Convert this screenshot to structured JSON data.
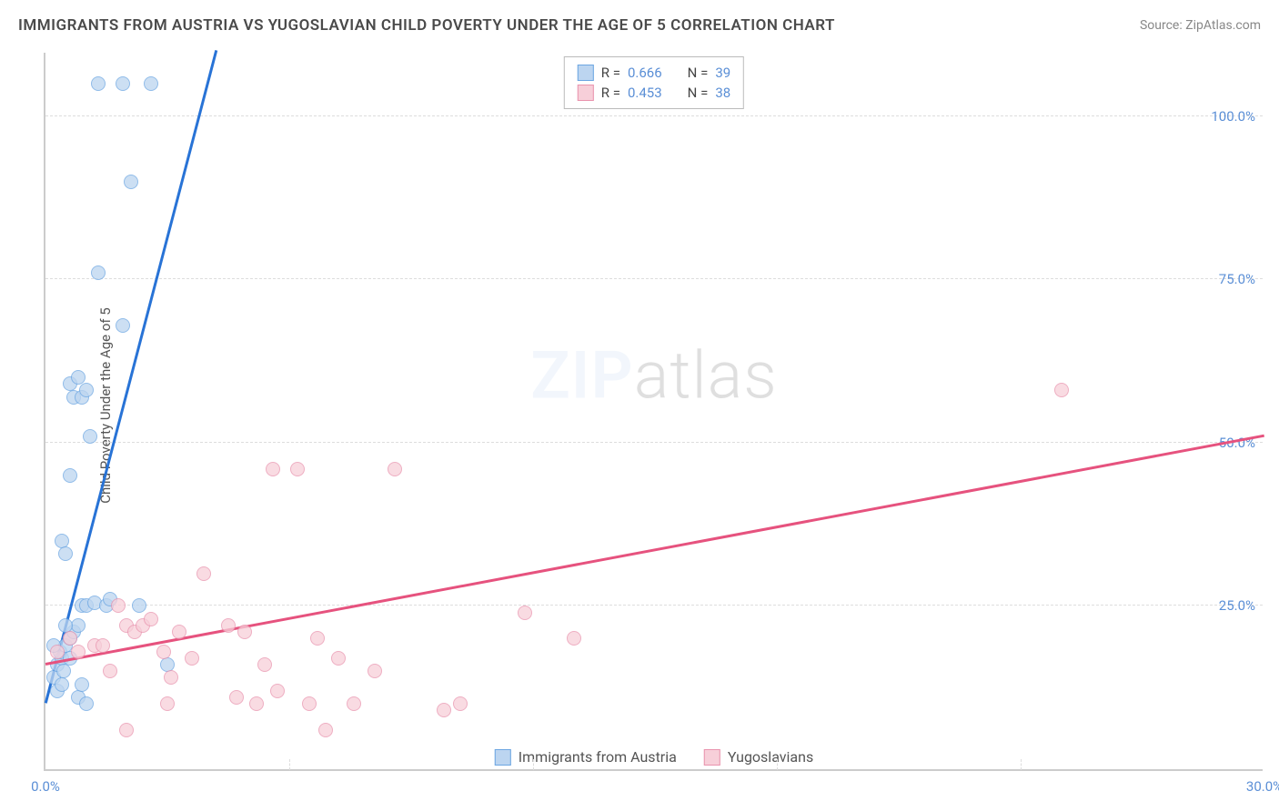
{
  "title": "IMMIGRANTS FROM AUSTRIA VS YUGOSLAVIAN CHILD POVERTY UNDER THE AGE OF 5 CORRELATION CHART",
  "source_label": "Source: ZipAtlas.com",
  "y_axis_label": "Child Poverty Under the Age of 5",
  "watermark_bold": "ZIP",
  "watermark_rest": "atlas",
  "chart": {
    "type": "scatter",
    "background_color": "#ffffff",
    "grid_color": "#dddddd",
    "axis_color": "#cccccc",
    "tick_label_color": "#5b8fd6",
    "x_range": [
      0,
      30
    ],
    "y_range": [
      0,
      110
    ],
    "y_ticks": [
      {
        "value": 25,
        "label": "25.0%"
      },
      {
        "value": 50,
        "label": "50.0%"
      },
      {
        "value": 75,
        "label": "75.0%"
      },
      {
        "value": 100,
        "label": "100.0%"
      }
    ],
    "x_ticks": [
      {
        "value": 0,
        "label": "0.0%"
      },
      {
        "value": 30,
        "label": "30.0%"
      }
    ],
    "x_minor_ticks": [
      6,
      12,
      18,
      24
    ],
    "series": [
      {
        "id": "austria",
        "name": "Immigrants from Austria",
        "marker_fill": "#bcd5f0",
        "marker_stroke": "#6ca6e2",
        "line_color": "#2873d6",
        "r_value": "0.666",
        "n_value": "39",
        "trend_start": {
          "x": 0,
          "y": 10
        },
        "trend_end": {
          "x": 4.2,
          "y": 110
        },
        "points": [
          {
            "x": 0.2,
            "y": 14
          },
          {
            "x": 0.3,
            "y": 16
          },
          {
            "x": 0.4,
            "y": 17
          },
          {
            "x": 0.35,
            "y": 18
          },
          {
            "x": 0.5,
            "y": 19
          },
          {
            "x": 0.45,
            "y": 15
          },
          {
            "x": 0.6,
            "y": 20
          },
          {
            "x": 0.7,
            "y": 21
          },
          {
            "x": 0.8,
            "y": 22
          },
          {
            "x": 0.9,
            "y": 25
          },
          {
            "x": 1.0,
            "y": 25
          },
          {
            "x": 1.2,
            "y": 25.5
          },
          {
            "x": 1.5,
            "y": 25
          },
          {
            "x": 1.6,
            "y": 26
          },
          {
            "x": 2.3,
            "y": 25
          },
          {
            "x": 3.0,
            "y": 16
          },
          {
            "x": 0.3,
            "y": 12
          },
          {
            "x": 0.4,
            "y": 13
          },
          {
            "x": 0.2,
            "y": 19
          },
          {
            "x": 0.5,
            "y": 22
          },
          {
            "x": 0.6,
            "y": 17
          },
          {
            "x": 0.8,
            "y": 11
          },
          {
            "x": 0.9,
            "y": 13
          },
          {
            "x": 1.0,
            "y": 10
          },
          {
            "x": 0.4,
            "y": 35
          },
          {
            "x": 0.5,
            "y": 33
          },
          {
            "x": 0.6,
            "y": 45
          },
          {
            "x": 1.1,
            "y": 51
          },
          {
            "x": 0.7,
            "y": 57
          },
          {
            "x": 0.9,
            "y": 57
          },
          {
            "x": 1.0,
            "y": 58
          },
          {
            "x": 0.6,
            "y": 59
          },
          {
            "x": 0.8,
            "y": 60
          },
          {
            "x": 1.9,
            "y": 68
          },
          {
            "x": 1.3,
            "y": 76
          },
          {
            "x": 2.1,
            "y": 90
          },
          {
            "x": 1.3,
            "y": 105
          },
          {
            "x": 1.9,
            "y": 105
          },
          {
            "x": 2.6,
            "y": 105
          }
        ]
      },
      {
        "id": "yugoslavians",
        "name": "Yugoslavians",
        "marker_fill": "#f7cfd9",
        "marker_stroke": "#e994ae",
        "line_color": "#e6527e",
        "r_value": "0.453",
        "n_value": "38",
        "trend_start": {
          "x": 0,
          "y": 16
        },
        "trend_end": {
          "x": 30,
          "y": 51
        },
        "points": [
          {
            "x": 0.3,
            "y": 18
          },
          {
            "x": 0.6,
            "y": 20
          },
          {
            "x": 0.8,
            "y": 18
          },
          {
            "x": 1.2,
            "y": 19
          },
          {
            "x": 1.4,
            "y": 19
          },
          {
            "x": 1.6,
            "y": 15
          },
          {
            "x": 1.8,
            "y": 25
          },
          {
            "x": 2.0,
            "y": 22
          },
          {
            "x": 2.2,
            "y": 21
          },
          {
            "x": 2.4,
            "y": 22
          },
          {
            "x": 2.6,
            "y": 23
          },
          {
            "x": 2.9,
            "y": 18
          },
          {
            "x": 3.1,
            "y": 14
          },
          {
            "x": 3.3,
            "y": 21
          },
          {
            "x": 3.6,
            "y": 17
          },
          {
            "x": 3.9,
            "y": 30
          },
          {
            "x": 4.5,
            "y": 22
          },
          {
            "x": 4.7,
            "y": 11
          },
          {
            "x": 4.9,
            "y": 21
          },
          {
            "x": 5.2,
            "y": 10
          },
          {
            "x": 5.4,
            "y": 16
          },
          {
            "x": 5.7,
            "y": 12
          },
          {
            "x": 5.6,
            "y": 46
          },
          {
            "x": 6.2,
            "y": 46
          },
          {
            "x": 6.5,
            "y": 10
          },
          {
            "x": 6.7,
            "y": 20
          },
          {
            "x": 6.9,
            "y": 6
          },
          {
            "x": 7.2,
            "y": 17
          },
          {
            "x": 7.6,
            "y": 10
          },
          {
            "x": 8.1,
            "y": 15
          },
          {
            "x": 8.6,
            "y": 46
          },
          {
            "x": 2.0,
            "y": 6
          },
          {
            "x": 9.8,
            "y": 9
          },
          {
            "x": 10.2,
            "y": 10
          },
          {
            "x": 11.8,
            "y": 24
          },
          {
            "x": 13.0,
            "y": 20
          },
          {
            "x": 3.0,
            "y": 10
          },
          {
            "x": 25.0,
            "y": 58
          }
        ]
      }
    ],
    "stats_legend": {
      "r_label": "R =",
      "n_label": "N ="
    }
  }
}
